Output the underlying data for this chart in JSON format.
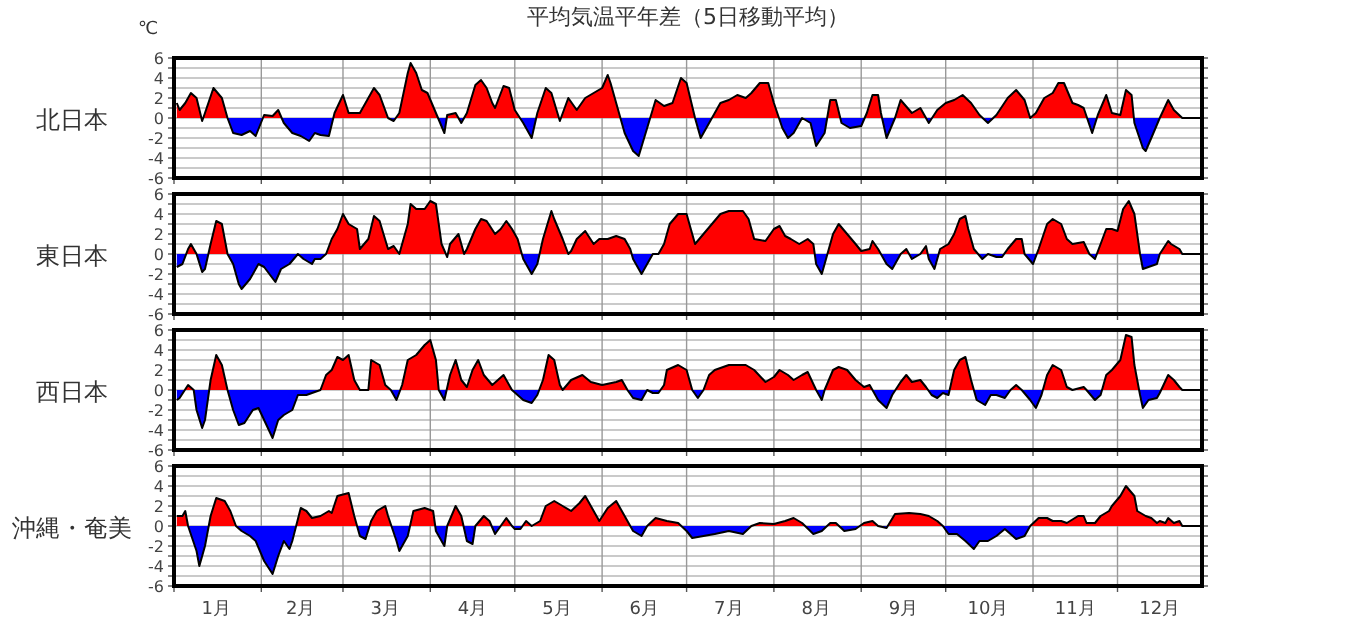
{
  "chart_data": [
    {
      "type": "area",
      "title": "平均気温平年差（5日移動平均）",
      "annotations": [
        "℃"
      ],
      "ylabel": "北日本",
      "colors": [
        "#ff0000",
        "#0000ff"
      ],
      "xlim": [
        "--01-01",
        "--12-31"
      ],
      "ylim": [
        -6,
        6
      ],
      "grid": true,
      "tick_labels": "y",
      "yticks": [
        -6,
        {
          "value": -5,
          "label": null
        },
        -4,
        {
          "value": -3,
          "label": null
        },
        -2,
        {
          "value": -1,
          "label": null
        },
        0,
        {
          "value": 1,
          "label": null
        },
        2,
        {
          "value": 3,
          "label": null
        },
        4,
        {
          "value": 5,
          "label": null
        },
        6
      ],
      "xticks": [
        {
          "value": "--01-01",
          "label": null
        },
        {
          "value": "--02-01",
          "label": null
        },
        {
          "value": "--03-01",
          "label": null
        },
        {
          "value": "--04-01",
          "label": null
        },
        {
          "value": "--05-01",
          "label": null
        },
        {
          "value": "--06-01",
          "label": null
        },
        {
          "value": "--07-01",
          "label": null
        },
        {
          "value": "--08-01",
          "label": null
        },
        {
          "value": "--09-01",
          "label": null
        },
        {
          "value": "--10-01",
          "label": null
        },
        {
          "value": "--11-01",
          "label": null
        },
        {
          "value": "--12-01",
          "label": null
        }
      ],
      "series": [
        {
          "color": "#000000",
          "x": [
            "--01-02",
            "--01-03",
            "--01-05",
            "--01-07",
            "--01-09",
            "--01-11",
            "--01-12",
            "--01-15",
            "--01-18",
            "--01-20",
            "--01-22",
            "--01-25",
            "--01-28",
            "--01-30",
            "--02-02",
            "--02-05",
            "--02-07",
            "--02-09",
            "--02-12",
            "--02-15",
            "--02-18",
            "--02-20",
            "--02-22",
            "--02-25",
            "--02-27",
            "--03-01",
            "--03-03",
            "--03-07",
            "--03-10",
            "--03-12",
            "--03-14",
            "--03-17",
            "--03-19",
            "--03-21",
            "--03-24",
            "--03-25",
            "--03-27",
            "--03-29",
            "--03-31",
            "--04-03",
            "--04-06",
            "--04-07",
            "--04-10",
            "--04-12",
            "--04-14",
            "--04-17",
            "--04-19",
            "--04-21",
            "--04-23",
            "--04-24",
            "--04-27",
            "--04-29",
            "--05-01",
            "--05-04",
            "--05-07",
            "--05-09",
            "--05-12",
            "--05-14",
            "--05-17",
            "--05-20",
            "--05-23",
            "--05-26",
            "--05-29",
            "--06-01",
            "--06-03",
            "--06-04",
            "--06-07",
            "--06-09",
            "--06-12",
            "--06-14",
            "--06-17",
            "--06-20",
            "--06-23",
            "--06-26",
            "--06-29",
            "--07-01",
            "--07-04",
            "--07-06",
            "--07-08",
            "--07-11",
            "--07-13",
            "--07-16",
            "--07-19",
            "--07-22",
            "--07-24",
            "--07-27",
            "--07-30",
            "--08-01",
            "--08-04",
            "--08-06",
            "--08-08",
            "--08-11",
            "--08-14",
            "--08-16",
            "--08-19",
            "--08-21",
            "--08-23",
            "--08-25",
            "--08-28",
            "--09-01",
            "--09-03",
            "--09-05",
            "--09-07",
            "--09-08",
            "--09-10",
            "--09-13",
            "--09-15",
            "--09-19",
            "--09-22",
            "--09-23",
            "--09-25",
            "--09-28",
            "--10-01",
            "--10-04",
            "--10-07",
            "--10-10",
            "--10-13",
            "--10-16",
            "--10-19",
            "--10-23",
            "--10-26",
            "--10-29",
            "--10-31",
            "--11-02",
            "--11-05",
            "--11-08",
            "--11-10",
            "--11-12",
            "--11-15",
            "--11-17",
            "--11-19",
            "--11-22",
            "--11-24",
            "--11-27",
            "--11-29",
            "--12-02",
            "--12-04",
            "--12-06",
            "--12-07",
            "--12-10",
            "--12-11",
            "--12-13",
            "--12-16",
            "--12-19",
            "--12-21",
            "--12-24",
            "--12-31"
          ],
          "values": [
            1.5,
            0.8,
            1.5,
            2.5,
            2.0,
            -0.3,
            0.5,
            3.0,
            2.0,
            0,
            -1.5,
            -1.7,
            -1.3,
            -1.8,
            0.3,
            0.2,
            0.8,
            -0.5,
            -1.5,
            -1.8,
            -2.3,
            -1.5,
            -1.7,
            -1.8,
            0.5,
            2.3,
            0.5,
            0.5,
            2.0,
            3.0,
            2.3,
            0,
            -0.3,
            0.5,
            4.5,
            5.5,
            4.5,
            2.8,
            2.5,
            0.5,
            -1.5,
            0.3,
            0.5,
            -0.5,
            0.5,
            3.3,
            3.8,
            3.0,
            1.5,
            1.0,
            3.2,
            3.0,
            0.8,
            -0.5,
            -2.0,
            0.5,
            3.0,
            2.5,
            -0.3,
            2.0,
            0.8,
            2.0,
            2.5,
            3.0,
            4.3,
            3.5,
            0.5,
            -1.5,
            -3.3,
            -3.8,
            -1.0,
            1.8,
            1.2,
            1.5,
            4.0,
            3.5,
            0,
            -2.0,
            -1.0,
            0.5,
            1.5,
            1.8,
            2.3,
            2.0,
            2.5,
            3.5,
            3.5,
            1.5,
            -1.0,
            -2.0,
            -1.5,
            0,
            -0.5,
            -2.8,
            -1.5,
            1.8,
            1.8,
            -0.5,
            -1.0,
            -0.8,
            0.5,
            2.3,
            2.3,
            0.5,
            -2.0,
            0,
            1.8,
            0.5,
            1.0,
            0.5,
            -0.5,
            0.8,
            1.5,
            1.8,
            2.3,
            1.5,
            0.3,
            -0.5,
            0.3,
            2.0,
            2.8,
            1.8,
            0,
            0.5,
            2.0,
            2.5,
            3.5,
            3.5,
            1.5,
            1.3,
            1.0,
            -1.5,
            0.3,
            2.3,
            0.5,
            0.3,
            2.8,
            2.3,
            -0.5,
            -3.0,
            -3.3,
            -2.0,
            0,
            1.8,
            0.8,
            0,
            0
          ]
        }
      ]
    },
    {
      "type": "area",
      "ylabel": "東日本",
      "colors": [
        "#ff0000",
        "#0000ff"
      ],
      "xlim": [
        "--01-01",
        "--12-31"
      ],
      "ylim": [
        -6,
        6
      ],
      "grid": true,
      "tick_labels": "y",
      "yticks": [
        -6,
        {
          "value": -5,
          "label": null
        },
        -4,
        {
          "value": -3,
          "label": null
        },
        -2,
        {
          "value": -1,
          "label": null
        },
        0,
        {
          "value": 1,
          "label": null
        },
        2,
        {
          "value": 3,
          "label": null
        },
        4,
        {
          "value": 5,
          "label": null
        },
        6
      ],
      "xticks": [
        {
          "value": "--01-01",
          "label": null
        },
        {
          "value": "--02-01",
          "label": null
        },
        {
          "value": "--03-01",
          "label": null
        },
        {
          "value": "--04-01",
          "label": null
        },
        {
          "value": "--05-01",
          "label": null
        },
        {
          "value": "--06-01",
          "label": null
        },
        {
          "value": "--07-01",
          "label": null
        },
        {
          "value": "--08-01",
          "label": null
        },
        {
          "value": "--09-01",
          "label": null
        },
        {
          "value": "--10-01",
          "label": null
        },
        {
          "value": "--11-01",
          "label": null
        },
        {
          "value": "--12-01",
          "label": null
        }
      ],
      "series": [
        {
          "color": "#000000",
          "x": [
            "--01-02",
            "--01-04",
            "--01-06",
            "--01-07",
            "--01-09",
            "--01-11",
            "--01-12",
            "--01-14",
            "--01-16",
            "--01-18",
            "--01-20",
            "--01-22",
            "--01-24",
            "--01-25",
            "--01-28",
            "--01-31",
            "--02-02",
            "--02-06",
            "--02-08",
            "--02-11",
            "--02-14",
            "--02-16",
            "--02-19",
            "--02-20",
            "--02-22",
            "--02-24",
            "--02-26",
            "--02-28",
            "--03-01",
            "--03-03",
            "--03-06",
            "--03-07",
            "--03-10",
            "--03-12",
            "--03-14",
            "--03-17",
            "--03-19",
            "--03-21",
            "--03-24",
            "--03-25",
            "--03-27",
            "--03-30",
            "--04-01",
            "--04-03",
            "--04-05",
            "--04-07",
            "--04-08",
            "--04-11",
            "--04-13",
            "--04-14",
            "--04-17",
            "--04-19",
            "--04-21",
            "--04-24",
            "--04-26",
            "--04-28",
            "--04-30",
            "--05-02",
            "--05-04",
            "--05-07",
            "--05-09",
            "--05-11",
            "--05-14",
            "--05-15",
            "--05-18",
            "--05-20",
            "--05-21",
            "--05-23",
            "--05-26",
            "--05-29",
            "--05-31",
            "--06-03",
            "--06-06",
            "--06-09",
            "--06-11",
            "--06-12",
            "--06-15",
            "--06-17",
            "--06-19",
            "--06-21",
            "--06-23",
            "--06-25",
            "--06-28",
            "--07-01",
            "--07-02",
            "--07-04",
            "--07-07",
            "--07-10",
            "--07-13",
            "--07-16",
            "--07-21",
            "--07-23",
            "--07-25",
            "--07-29",
            "--08-01",
            "--08-03",
            "--08-05",
            "--08-07",
            "--08-10",
            "--08-13",
            "--08-15",
            "--08-16",
            "--08-18",
            "--08-19",
            "--08-22",
            "--08-24",
            "--08-27",
            "--08-30",
            "--09-01",
            "--09-04",
            "--09-05",
            "--09-07",
            "--09-10",
            "--09-12",
            "--09-15",
            "--09-17",
            "--09-19",
            "--09-22",
            "--09-24",
            "--09-25",
            "--09-27",
            "--09-29",
            "--10-02",
            "--10-04",
            "--10-06",
            "--10-08",
            "--10-09",
            "--10-11",
            "--10-14",
            "--10-16",
            "--10-19",
            "--10-21",
            "--10-23",
            "--10-26",
            "--10-28",
            "--10-29",
            "--11-01",
            "--11-03",
            "--11-06",
            "--11-08",
            "--11-11",
            "--11-13",
            "--11-15",
            "--11-19",
            "--11-21",
            "--11-23",
            "--11-25",
            "--11-27",
            "--11-29",
            "--12-01",
            "--12-03",
            "--12-05",
            "--12-07",
            "--12-09",
            "--12-10",
            "--12-12",
            "--12-15",
            "--12-16",
            "--12-19",
            "--12-20",
            "--12-23",
            "--12-24",
            "--12-31"
          ],
          "values": [
            -1.3,
            -1.0,
            0.5,
            1.0,
            0,
            -1.8,
            -1.5,
            1.0,
            3.3,
            3.0,
            0,
            -1.0,
            -3.0,
            -3.5,
            -2.5,
            -1.0,
            -1.3,
            -2.8,
            -1.5,
            -1.0,
            0,
            -0.5,
            -1.0,
            -0.5,
            -0.5,
            0,
            1.5,
            2.5,
            4.0,
            3.0,
            2.5,
            0.5,
            1.5,
            3.8,
            3.3,
            0.5,
            0.8,
            0,
            3.0,
            5.0,
            4.5,
            4.5,
            5.3,
            5.0,
            1.0,
            -0.3,
            1.0,
            2.0,
            0,
            0.5,
            2.5,
            3.5,
            3.3,
            2.0,
            2.5,
            3.3,
            2.5,
            1.5,
            -0.5,
            -2.0,
            -1.0,
            1.5,
            4.3,
            3.5,
            1.5,
            0,
            0.3,
            1.5,
            2.3,
            1.0,
            1.5,
            1.5,
            1.8,
            1.5,
            0.5,
            -0.5,
            -2.0,
            -1.0,
            0,
            0,
            1.0,
            3.0,
            4.0,
            4.0,
            3.0,
            1.0,
            2.0,
            3.0,
            4.0,
            4.3,
            4.3,
            3.5,
            1.5,
            1.3,
            2.5,
            2.8,
            1.8,
            1.5,
            1.0,
            1.5,
            1.0,
            -1.0,
            -2.0,
            -1.0,
            2.0,
            3.0,
            2.0,
            1.0,
            0.3,
            0.5,
            1.3,
            0.5,
            -1.0,
            -1.5,
            0,
            0.5,
            -0.5,
            0,
            0.8,
            -0.5,
            -1.5,
            0.5,
            1.0,
            2.0,
            3.5,
            3.8,
            2.5,
            0.5,
            -0.5,
            0,
            -0.3,
            -0.3,
            0.5,
            1.5,
            1.5,
            0,
            -1.0,
            0.5,
            3.0,
            3.5,
            3.0,
            1.5,
            1.0,
            1.2,
            0,
            -0.5,
            1.0,
            2.5,
            2.5,
            2.3,
            4.5,
            5.3,
            4.0,
            0,
            -1.5,
            -1.3,
            -1.0,
            0,
            1.3,
            1.0,
            0.5,
            0,
            0
          ]
        }
      ]
    },
    {
      "type": "area",
      "ylabel": "西日本",
      "colors": [
        "#ff0000",
        "#0000ff"
      ],
      "xlim": [
        "--01-01",
        "--12-31"
      ],
      "ylim": [
        -6,
        6
      ],
      "grid": true,
      "tick_labels": "y",
      "yticks": [
        -6,
        {
          "value": -5,
          "label": null
        },
        -4,
        {
          "value": -3,
          "label": null
        },
        -2,
        {
          "value": -1,
          "label": null
        },
        0,
        {
          "value": 1,
          "label": null
        },
        2,
        {
          "value": 3,
          "label": null
        },
        4,
        {
          "value": 5,
          "label": null
        },
        6
      ],
      "xticks": [
        {
          "value": "--01-01",
          "label": null
        },
        {
          "value": "--02-01",
          "label": null
        },
        {
          "value": "--03-01",
          "label": null
        },
        {
          "value": "--04-01",
          "label": null
        },
        {
          "value": "--05-01",
          "label": null
        },
        {
          "value": "--06-01",
          "label": null
        },
        {
          "value": "--07-01",
          "label": null
        },
        {
          "value": "--08-01",
          "label": null
        },
        {
          "value": "--09-01",
          "label": null
        },
        {
          "value": "--10-01",
          "label": null
        },
        {
          "value": "--11-01",
          "label": null
        },
        {
          "value": "--12-01",
          "label": null
        }
      ],
      "series": [
        {
          "color": "#000000",
          "x": [
            "--01-02",
            "--01-03",
            "--01-06",
            "--01-08",
            "--01-09",
            "--01-11",
            "--01-12",
            "--01-14",
            "--01-16",
            "--01-18",
            "--01-20",
            "--01-22",
            "--01-24",
            "--01-26",
            "--01-29",
            "--01-31",
            "--02-02",
            "--02-05",
            "--02-07",
            "--02-09",
            "--02-12",
            "--02-14",
            "--02-17",
            "--02-19",
            "--02-22",
            "--02-24",
            "--02-26",
            "--02-28",
            "--03-01",
            "--03-03",
            "--03-05",
            "--03-07",
            "--03-10",
            "--03-11",
            "--03-14",
            "--03-16",
            "--03-18",
            "--03-20",
            "--03-22",
            "--03-24",
            "--03-27",
            "--03-30",
            "--04-01",
            "--04-03",
            "--04-04",
            "--04-06",
            "--04-08",
            "--04-10",
            "--04-12",
            "--04-14",
            "--04-16",
            "--04-18",
            "--04-20",
            "--04-23",
            "--04-25",
            "--04-27",
            "--04-30",
            "--05-02",
            "--05-04",
            "--05-07",
            "--05-09",
            "--05-11",
            "--05-13",
            "--05-15",
            "--05-17",
            "--05-18",
            "--05-21",
            "--05-25",
            "--05-28",
            "--06-01",
            "--06-06",
            "--06-08",
            "--06-10",
            "--06-12",
            "--06-15",
            "--06-17",
            "--06-19",
            "--06-21",
            "--06-23",
            "--06-24",
            "--06-28",
            "--07-01",
            "--07-03",
            "--07-05",
            "--07-07",
            "--07-09",
            "--07-11",
            "--07-16",
            "--07-22",
            "--07-25",
            "--07-29",
            "--08-01",
            "--08-03",
            "--08-06",
            "--08-08",
            "--08-11",
            "--08-13",
            "--08-16",
            "--08-18",
            "--08-19",
            "--08-22",
            "--08-24",
            "--08-27",
            "--08-30",
            "--09-02",
            "--09-04",
            "--09-05",
            "--09-07",
            "--09-10",
            "--09-12",
            "--09-15",
            "--09-17",
            "--09-19",
            "--09-22",
            "--09-24",
            "--09-26",
            "--09-28",
            "--09-30",
            "--10-02",
            "--10-04",
            "--10-06",
            "--10-08",
            "--10-10",
            "--10-12",
            "--10-15",
            "--10-17",
            "--10-19",
            "--10-22",
            "--10-24",
            "--10-26",
            "--10-28",
            "--10-31",
            "--11-02",
            "--11-04",
            "--11-06",
            "--11-08",
            "--11-11",
            "--11-13",
            "--11-15",
            "--11-19",
            "--11-20",
            "--11-23",
            "--11-25",
            "--11-27",
            "--11-29",
            "--12-02",
            "--12-04",
            "--12-06",
            "--12-07",
            "--12-09",
            "--12-10",
            "--12-12",
            "--12-15",
            "--12-16",
            "--12-19",
            "--12-21",
            "--12-23",
            "--12-24",
            "--12-31"
          ],
          "values": [
            -1.0,
            -0.8,
            0.5,
            0,
            -2.0,
            -3.8,
            -3.0,
            1.0,
            3.5,
            2.5,
            0,
            -2.0,
            -3.5,
            -3.3,
            -2.0,
            -1.8,
            -3.0,
            -4.8,
            -3.0,
            -2.5,
            -2.0,
            -0.5,
            -0.5,
            -0.3,
            0,
            1.5,
            2.0,
            3.3,
            3.0,
            3.5,
            1.0,
            0,
            0,
            3.0,
            2.5,
            0.5,
            0,
            -1.0,
            0.5,
            3.0,
            3.5,
            4.5,
            5.0,
            3.0,
            0,
            -1.0,
            1.5,
            3.0,
            1.0,
            0.3,
            2.0,
            3.0,
            1.5,
            0.5,
            1.0,
            1.5,
            0,
            -0.5,
            -1.0,
            -1.3,
            -0.5,
            1.0,
            3.5,
            3.0,
            0.5,
            0,
            1.0,
            1.5,
            0.8,
            0.5,
            0.8,
            1.0,
            0,
            -0.8,
            -1.0,
            0,
            -0.3,
            -0.3,
            0.5,
            2.0,
            2.5,
            2.0,
            0,
            -0.8,
            0,
            1.5,
            2.0,
            2.5,
            2.5,
            2.0,
            0.8,
            1.3,
            2.0,
            1.5,
            1.0,
            1.5,
            1.8,
            0,
            -1.0,
            0,
            2.0,
            2.3,
            2.0,
            1.0,
            0.3,
            0.5,
            0,
            -1.0,
            -1.8,
            -0.5,
            0.8,
            1.5,
            0.8,
            1.0,
            0.3,
            -0.5,
            -0.8,
            -0.3,
            -0.5,
            2.0,
            3.0,
            3.3,
            1.0,
            -1.0,
            -1.5,
            -0.5,
            -0.5,
            -0.8,
            0,
            0.5,
            0,
            -1.0,
            -1.8,
            -0.5,
            1.5,
            2.5,
            2.0,
            0.3,
            0,
            0.3,
            0,
            -1.0,
            -0.5,
            1.5,
            2.0,
            3.0,
            5.5,
            5.3,
            2.5,
            -0.5,
            -1.8,
            -1.0,
            -0.8,
            -0.3,
            1.5,
            1.0,
            0.3,
            0,
            0
          ]
        }
      ]
    },
    {
      "type": "area",
      "ylabel": "沖縄・奄美",
      "colors": [
        "#ff0000",
        "#0000ff"
      ],
      "xlim": [
        "--01-01",
        "--12-31"
      ],
      "ylim": [
        -6,
        6
      ],
      "grid": true,
      "yticks": [
        -6,
        {
          "value": -5,
          "label": null
        },
        -4,
        {
          "value": -3,
          "label": null
        },
        -2,
        {
          "value": -1,
          "label": null
        },
        0,
        {
          "value": 1,
          "label": null
        },
        2,
        {
          "value": 3,
          "label": null
        },
        4,
        {
          "value": 5,
          "label": null
        },
        6
      ],
      "xticks": [
        {
          "value": "--01-01",
          "label": null
        },
        {
          "value": "--02-01",
          "label": null
        },
        {
          "value": "--03-01",
          "label": null
        },
        {
          "value": "--04-01",
          "label": null
        },
        {
          "value": "--05-01",
          "label": null
        },
        {
          "value": "--06-01",
          "label": null
        },
        {
          "value": "--07-01",
          "label": null
        },
        {
          "value": "--08-01",
          "label": null
        },
        {
          "value": "--09-01",
          "label": null
        },
        {
          "value": "--10-01",
          "label": null
        },
        {
          "value": "--11-01",
          "label": null
        },
        {
          "value": "--12-01",
          "label": null
        },
        {
          "value": "--01-16",
          "label": "1月"
        },
        {
          "value": "--02-15",
          "label": "2月"
        },
        {
          "value": "--03-16",
          "label": "3月"
        },
        {
          "value": "--04-16",
          "label": "4月"
        },
        {
          "value": "--05-16",
          "label": "5月"
        },
        {
          "value": "--06-16",
          "label": "6月"
        },
        {
          "value": "--07-16",
          "label": "7月"
        },
        {
          "value": "--08-16",
          "label": "8月"
        },
        {
          "value": "--09-16",
          "label": "9月"
        },
        {
          "value": "--10-16",
          "label": "10月"
        },
        {
          "value": "--11-16",
          "label": "11月"
        },
        {
          "value": "--12-16",
          "label": "12月"
        }
      ],
      "series": [
        {
          "color": "#000000",
          "x": [
            "--01-02",
            "--01-04",
            "--01-05",
            "--01-06",
            "--01-09",
            "--01-10",
            "--01-12",
            "--01-14",
            "--01-16",
            "--01-19",
            "--01-21",
            "--01-23",
            "--01-25",
            "--01-28",
            "--01-30",
            "--02-02",
            "--02-05",
            "--02-07",
            "--02-09",
            "--02-11",
            "--02-12",
            "--02-15",
            "--02-17",
            "--02-19",
            "--02-22",
            "--02-25",
            "--02-26",
            "--02-28",
            "--03-03",
            "--03-05",
            "--03-07",
            "--03-09",
            "--03-11",
            "--03-13",
            "--03-16",
            "--03-17",
            "--03-20",
            "--03-21",
            "--03-24",
            "--03-26",
            "--03-30",
            "--04-02",
            "--04-03",
            "--04-06",
            "--04-07",
            "--04-10",
            "--04-12",
            "--04-14",
            "--04-16",
            "--04-17",
            "--04-20",
            "--04-22",
            "--04-24",
            "--04-26",
            "--04-28",
            "--04-30",
            "--05-01",
            "--05-03",
            "--05-05",
            "--05-07",
            "--05-10",
            "--05-12",
            "--05-15",
            "--05-18",
            "--05-21",
            "--05-24",
            "--05-26",
            "--05-28",
            "--05-31",
            "--06-03",
            "--06-06",
            "--06-08",
            "--06-11",
            "--06-12",
            "--06-15",
            "--06-17",
            "--06-20",
            "--06-24",
            "--06-28",
            "--07-01",
            "--07-03",
            "--07-07",
            "--07-11",
            "--07-16",
            "--07-21",
            "--07-24",
            "--07-27",
            "--08-01",
            "--08-05",
            "--08-08",
            "--08-11",
            "--08-15",
            "--08-18",
            "--08-21",
            "--08-23",
            "--08-26",
            "--08-30",
            "--09-02",
            "--09-05",
            "--09-07",
            "--09-10",
            "--09-13",
            "--09-18",
            "--09-22",
            "--09-25",
            "--09-28",
            "--09-30",
            "--10-02",
            "--10-05",
            "--10-08",
            "--10-11",
            "--10-13",
            "--10-16",
            "--10-19",
            "--10-22",
            "--10-24",
            "--10-26",
            "--10-29",
            "--10-31",
            "--11-03",
            "--11-06",
            "--11-08",
            "--11-11",
            "--11-13",
            "--11-17",
            "--11-19",
            "--11-20",
            "--11-23",
            "--11-25",
            "--11-28",
            "--11-29",
            "--12-02",
            "--12-04",
            "--12-07",
            "--12-08",
            "--12-11",
            "--12-13",
            "--12-15",
            "--12-16",
            "--12-18",
            "--12-19",
            "--12-21",
            "--12-23",
            "--12-24",
            "--12-31"
          ],
          "values": [
            1.0,
            1.0,
            1.5,
            0,
            -2.5,
            -4.0,
            -2.0,
            1.0,
            2.8,
            2.5,
            1.5,
            0,
            -0.5,
            -1.0,
            -1.5,
            -3.5,
            -4.8,
            -3.0,
            -1.5,
            -2.3,
            -1.5,
            1.8,
            1.5,
            0.8,
            1.0,
            1.5,
            1.3,
            3.0,
            3.3,
            1.0,
            -1.0,
            -1.3,
            0.5,
            1.5,
            2.0,
            1.0,
            -1.5,
            -2.5,
            -1.0,
            1.5,
            1.8,
            1.5,
            -0.5,
            -2.0,
            0,
            2.0,
            1.0,
            -1.5,
            -1.8,
            0,
            1.0,
            0.5,
            -0.8,
            0,
            0.8,
            0,
            -0.3,
            -0.3,
            0.5,
            0,
            0.5,
            2.0,
            2.5,
            2.0,
            1.5,
            2.3,
            3.0,
            2.0,
            0.5,
            1.8,
            2.5,
            1.5,
            0,
            -0.5,
            -1.0,
            0,
            0.8,
            0.5,
            0.3,
            -0.5,
            -1.2,
            -1.0,
            -0.8,
            -0.5,
            -0.8,
            0,
            0.3,
            0.2,
            0.5,
            0.8,
            0.3,
            -0.8,
            -0.5,
            0.3,
            0.3,
            -0.5,
            -0.3,
            0.3,
            0.5,
            0,
            -0.2,
            1.2,
            1.3,
            1.2,
            1.0,
            0.5,
            0,
            -0.8,
            -0.8,
            -1.5,
            -2.3,
            -1.5,
            -1.5,
            -1.0,
            -0.3,
            -0.8,
            -1.3,
            -1.0,
            0,
            0.8,
            0.8,
            0.5,
            0.5,
            0.3,
            1.0,
            1.0,
            0.3,
            0.3,
            1.0,
            1.5,
            2.0,
            3.0,
            4.0,
            3.0,
            1.5,
            1.0,
            0.8,
            0.3,
            0.5,
            0.3,
            0.8,
            0.3,
            0.5,
            0,
            0
          ]
        }
      ]
    }
  ]
}
